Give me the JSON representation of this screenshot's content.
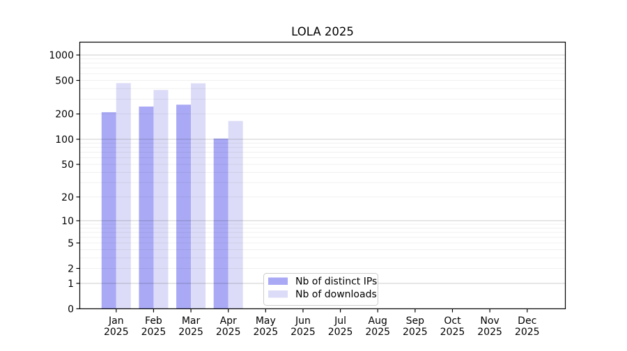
{
  "page": {
    "background": "#ffffff"
  },
  "chart_data": {
    "type": "bar",
    "title": "LOLA 2025",
    "categories": [
      "Jan 2025",
      "Feb 2025",
      "Mar 2025",
      "Apr 2025",
      "May 2025",
      "Jun 2025",
      "Jul 2025",
      "Aug 2025",
      "Sep 2025",
      "Oct 2025",
      "Nov 2025",
      "Dec 2025"
    ],
    "x_tick_months": [
      "Jan",
      "Feb",
      "Mar",
      "Apr",
      "May",
      "Jun",
      "Jul",
      "Aug",
      "Sep",
      "Oct",
      "Nov",
      "Dec"
    ],
    "x_tick_year": "2025",
    "series": [
      {
        "name": "Nb of distinct IPs",
        "color": "#a9a9f5",
        "values": [
          210,
          245,
          258,
          102,
          null,
          null,
          null,
          null,
          null,
          null,
          null,
          null
        ]
      },
      {
        "name": "Nb of downloads",
        "color": "#dcdcf8",
        "values": [
          465,
          385,
          462,
          165,
          null,
          null,
          null,
          null,
          null,
          null,
          null,
          null
        ]
      }
    ],
    "y_ticks": [
      1000,
      500,
      200,
      100,
      50,
      20,
      10,
      5,
      2,
      1,
      0
    ],
    "yscale": "log10(value+1)",
    "ylim": [
      0,
      1420
    ],
    "xlabel": "",
    "ylabel": "",
    "grid": {
      "major": "on",
      "minor": "on",
      "major_color": "#cccccc",
      "minor_color": "#f0f0f0",
      "grid_above_bars": true
    },
    "legend": {
      "position": "bottom-center-inside",
      "entries": [
        "Nb of distinct IPs",
        "Nb of downloads"
      ]
    },
    "frame_color": "#000000"
  }
}
